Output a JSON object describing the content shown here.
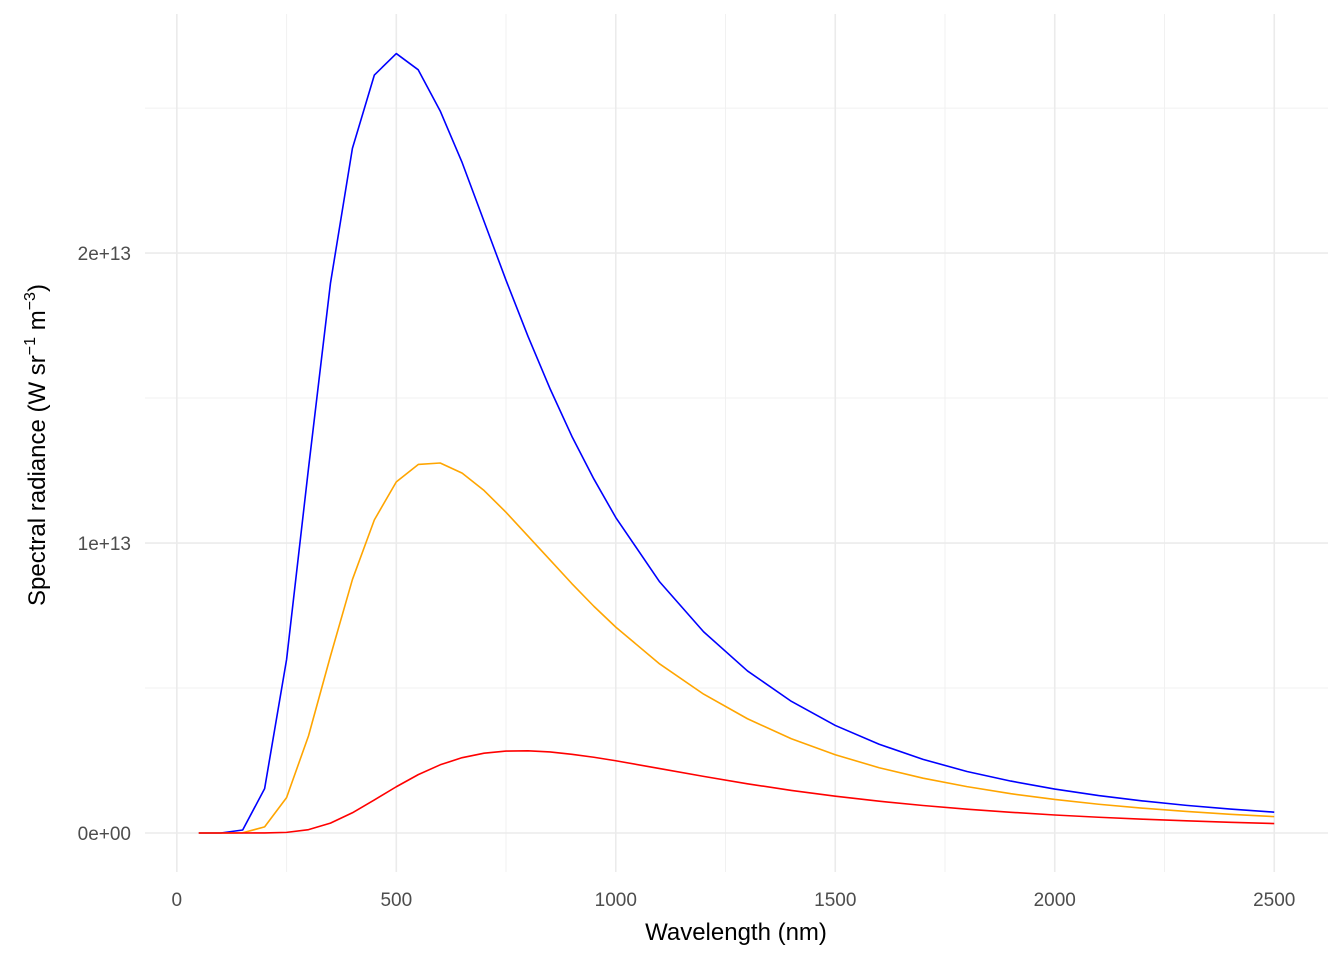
{
  "chart_data": {
    "type": "line",
    "xlabel": "Wavelength (nm)",
    "ylabel_parts": [
      "Spectral  radiance  (W sr",
      "−1",
      " m",
      "−3",
      ")"
    ],
    "x": [
      50,
      100,
      150,
      200,
      250,
      300,
      350,
      400,
      450,
      500,
      550,
      600,
      650,
      700,
      750,
      800,
      850,
      900,
      950,
      1000,
      1100,
      1200,
      1300,
      1400,
      1500,
      1600,
      1700,
      1800,
      1900,
      2000,
      2100,
      2200,
      2300,
      2400,
      2500
    ],
    "series": [
      {
        "color": "#0000ff",
        "values": [
          0,
          200000000.0,
          103000000000.0,
          1530000000000.0,
          5980000000000.0,
          12580000000000.0,
          18960000000000.0,
          23610000000000.0,
          26140000000000.0,
          26880000000000.0,
          26320000000000.0,
          24900000000000.0,
          23120000000000.0,
          21090000000000.0,
          19060000000000.0,
          17130000000000.0,
          15330000000000.0,
          13680000000000.0,
          12210000000000.0,
          10880000000000.0,
          8660000000000.0,
          6940000000000.0,
          5590000000000.0,
          4540000000000.0,
          3710000000000.0,
          3060000000000.0,
          2540000000000.0,
          2120000000000.0,
          1790000000000.0,
          1515000000000.0,
          1291000000000.0,
          1106000000000.0,
          953000000000.0,
          825000000000.0,
          719000000000.0
        ]
      },
      {
        "color": "#ffa500",
        "values": [
          0,
          3800000.0,
          7300000000.0,
          210000000000.0,
          1220000000000.0,
          3350000000000.0,
          6100000000000.0,
          8740000000000.0,
          10800000000000.0,
          12110000000000.0,
          12710000000000.0,
          12760000000000.0,
          12410000000000.0,
          11810000000000.0,
          11060000000000.0,
          10240000000000.0,
          9420000000000.0,
          8600000000000.0,
          7820000000000.0,
          7100000000000.0,
          5830000000000.0,
          4790000000000.0,
          3940000000000.0,
          3250000000000.0,
          2700000000000.0,
          2250000000000.0,
          1890000000000.0,
          1600000000000.0,
          1355000000000.0,
          1156000000000.0,
          992000000000.0,
          856000000000.0,
          743000000000.0,
          645000000000.0,
          565000000000.0
        ]
      },
      {
        "color": "#ff0000",
        "values": [
          0,
          0,
          0,
          1340000000.0,
          21500000000.0,
          115000000000.0,
          340000000000.0,
          698000000000.0,
          1142000000000.0,
          1595000000000.0,
          2013000000000.0,
          2352000000000.0,
          2598000000000.0,
          2752000000000.0,
          2826000000000.0,
          2835000000000.0,
          2796000000000.0,
          2715000000000.0,
          2613000000000.0,
          2492000000000.0,
          2221000000000.0,
          1953000000000.0,
          1697000000000.0,
          1469000000000.0,
          1269000000000.0,
          1096000000000.0,
          948000000000.0,
          822000000000.0,
          714000000000.0,
          621000000000.0,
          543000000000.0,
          476000000000.0,
          419000000000.0,
          369000000000.0,
          326000000000.0
        ]
      }
    ],
    "xlim": [
      -72.5,
      2622.5
    ],
    "ylim": [
      -1345000000000.0,
      28245000000000.0
    ],
    "xticks": [
      0,
      500,
      1000,
      1500,
      2000,
      2500
    ],
    "yticks": [
      {
        "value": 0,
        "label": "0e+00"
      },
      {
        "value": 10000000000000.0,
        "label": "1e+13"
      },
      {
        "value": 20000000000000.0,
        "label": "2e+13"
      }
    ],
    "x_minor_grid": [
      250,
      750,
      1250,
      1750,
      2250
    ],
    "y_minor_grid": [
      5000000000000.0,
      15000000000000.0,
      25000000000000.0
    ],
    "grid": true
  }
}
